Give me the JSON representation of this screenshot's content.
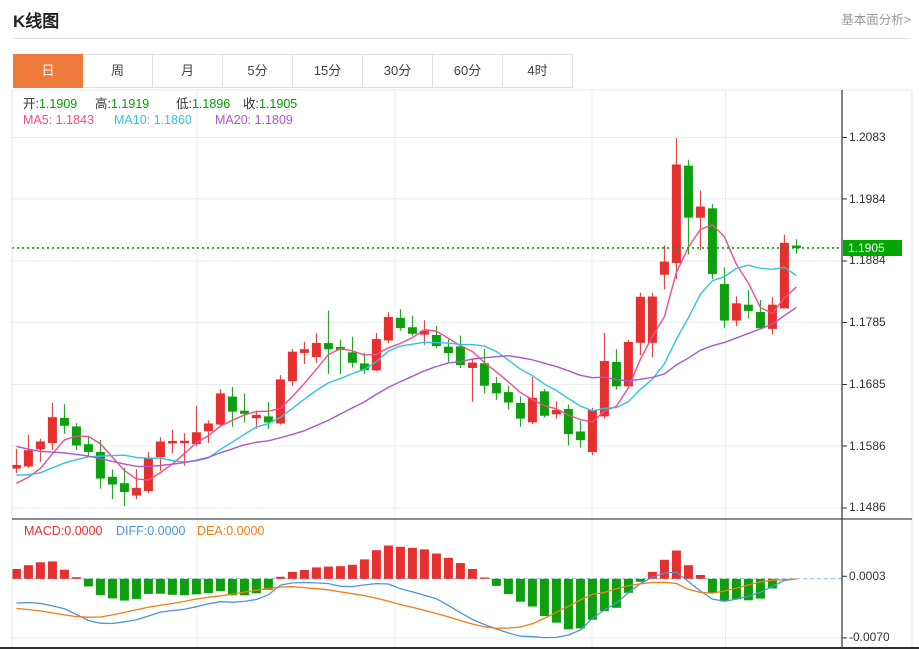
{
  "header": {
    "title": "K线图",
    "link_label": "基本面分析>"
  },
  "tabs": {
    "items": [
      {
        "label": "日",
        "active": true
      },
      {
        "label": "周",
        "active": false
      },
      {
        "label": "月",
        "active": false
      },
      {
        "label": "5分",
        "active": false
      },
      {
        "label": "15分",
        "active": false
      },
      {
        "label": "30分",
        "active": false
      },
      {
        "label": "60分",
        "active": false
      },
      {
        "label": "4时",
        "active": false
      }
    ]
  },
  "legend": {
    "open_label": "开:",
    "open": "1.1909",
    "high_label": "高:",
    "high": "1.1919",
    "low_label": "低:",
    "low": "1.1896",
    "close_label": "收:",
    "close": "1.1905",
    "ma5_label": "MA5:",
    "ma5": "1.1843",
    "ma10_label": "MA10:",
    "ma10": "1.1860",
    "ma20_label": "MA20:",
    "ma20": "1.1809"
  },
  "macd_legend": {
    "macd_label": "MACD:",
    "macd": "0.0000",
    "diff_label": "DIFF:",
    "diff": "0.0000",
    "dea_label": "DEA:",
    "dea": "0.0000"
  },
  "price_tag": {
    "value": "1.1905"
  },
  "axis": {
    "price_labels": [
      "1.2083",
      "1.1984",
      "1.1884",
      "1.1785",
      "1.1685",
      "1.1586",
      "1.1486"
    ],
    "macd_labels": [
      "0.0003",
      "-0.0070"
    ]
  },
  "colors": {
    "up": "#e62f2f",
    "down": "#0d9f0d",
    "accent": "#ee7a3c",
    "tag": "#00a700",
    "price_line": "#00a000",
    "ma5": "#ef4e8d",
    "ma10": "#30c4de",
    "ma20": "#ac57cc",
    "diff": "#4e94d8",
    "dea": "#ee7e18",
    "grid": "#e8eef5",
    "axis_line": "#333333",
    "zero_dash": "#86bce8",
    "legend_value": "#00a000"
  },
  "chart_data": {
    "type": "candlestick+macd",
    "title": "K线图",
    "candle_columns": [
      "open",
      "high",
      "low",
      "close"
    ],
    "candles": [
      [
        1.15495,
        1.15814,
        1.15424,
        1.15554
      ],
      [
        1.15529,
        1.16041,
        1.15506,
        1.15791
      ],
      [
        1.15807,
        1.15978,
        1.15601,
        1.15932
      ],
      [
        1.15907,
        1.16552,
        1.15795,
        1.16323
      ],
      [
        1.16313,
        1.16533,
        1.16056,
        1.16185
      ],
      [
        1.16175,
        1.16228,
        1.15798,
        1.15867
      ],
      [
        1.15888,
        1.16017,
        1.1569,
        1.15764
      ],
      [
        1.15764,
        1.15957,
        1.15174,
        1.15335
      ],
      [
        1.15363,
        1.1548,
        1.15005,
        1.15239
      ],
      [
        1.1526,
        1.15508,
        1.14892,
        1.15118
      ],
      [
        1.15061,
        1.15488,
        1.15002,
        1.15185
      ],
      [
        1.15134,
        1.15762,
        1.15102,
        1.15674
      ],
      [
        1.15679,
        1.15999,
        1.15459,
        1.15932
      ],
      [
        1.15907,
        1.16122,
        1.15746,
        1.15941
      ],
      [
        1.15904,
        1.16067,
        1.15542,
        1.15944
      ],
      [
        1.15891,
        1.16508,
        1.15857,
        1.16081
      ],
      [
        1.16099,
        1.16273,
        1.15909,
        1.16222
      ],
      [
        1.16204,
        1.16776,
        1.16186,
        1.16707
      ],
      [
        1.16655,
        1.16811,
        1.16168,
        1.16412
      ],
      [
        1.16429,
        1.16707,
        1.16238,
        1.16378
      ],
      [
        1.16307,
        1.16429,
        1.16135,
        1.1636
      ],
      [
        1.16336,
        1.16568,
        1.16135,
        1.16238
      ],
      [
        1.16222,
        1.17001,
        1.16204,
        1.16932
      ],
      [
        1.16903,
        1.17422,
        1.16823,
        1.17379
      ],
      [
        1.17359,
        1.17538,
        1.1718,
        1.17419
      ],
      [
        1.17293,
        1.17677,
        1.172,
        1.17519
      ],
      [
        1.17517,
        1.18038,
        1.17022,
        1.17419
      ],
      [
        1.17454,
        1.17573,
        1.17022,
        1.17403
      ],
      [
        1.17369,
        1.1762,
        1.17126,
        1.172
      ],
      [
        1.1719,
        1.17362,
        1.17022,
        1.1708
      ],
      [
        1.17077,
        1.1768,
        1.17066,
        1.17582
      ],
      [
        1.17561,
        1.18017,
        1.17517,
        1.17938
      ],
      [
        1.17925,
        1.18063,
        1.17717,
        1.1776
      ],
      [
        1.17773,
        1.17959,
        1.17638,
        1.17667
      ],
      [
        1.17654,
        1.17886,
        1.1749,
        1.17717
      ],
      [
        1.17648,
        1.17793,
        1.17435,
        1.17469
      ],
      [
        1.17459,
        1.17578,
        1.17211,
        1.17356
      ],
      [
        1.17464,
        1.17638,
        1.17117,
        1.17163
      ],
      [
        1.17116,
        1.17271,
        1.16574,
        1.17203
      ],
      [
        1.17192,
        1.17422,
        1.16707,
        1.16831
      ],
      [
        1.16873,
        1.16971,
        1.16602,
        1.16707
      ],
      [
        1.16728,
        1.16831,
        1.16449,
        1.1656
      ],
      [
        1.16554,
        1.16658,
        1.16172,
        1.16301
      ],
      [
        1.16241,
        1.16971,
        1.16214,
        1.16637
      ],
      [
        1.1674,
        1.16776,
        1.16318,
        1.16346
      ],
      [
        1.1637,
        1.16578,
        1.16301,
        1.16439
      ],
      [
        1.16455,
        1.16526,
        1.15867,
        1.16052
      ],
      [
        1.16093,
        1.16265,
        1.15832,
        1.15954
      ],
      [
        1.15762,
        1.16475,
        1.15711,
        1.16439
      ],
      [
        1.16336,
        1.1768,
        1.16301,
        1.17229
      ],
      [
        1.17213,
        1.17419,
        1.16769,
        1.16821
      ],
      [
        1.16821,
        1.17567,
        1.1681,
        1.17535
      ],
      [
        1.17522,
        1.18329,
        1.17319,
        1.18263
      ],
      [
        1.17522,
        1.18328,
        1.1729,
        1.18268
      ],
      [
        1.18619,
        1.1909,
        1.18382,
        1.1883
      ],
      [
        1.18808,
        1.20819,
        1.18548,
        1.20395
      ],
      [
        1.20376,
        1.20471,
        1.18948,
        1.19538
      ],
      [
        1.19538,
        1.19971,
        1.19019,
        1.19717
      ],
      [
        1.19689,
        1.19758,
        1.1855,
        1.18631
      ],
      [
        1.18469,
        1.18738,
        1.17757,
        1.1788
      ],
      [
        1.1788,
        1.1827,
        1.17789,
        1.18158
      ],
      [
        1.18136,
        1.18369,
        1.17912,
        1.18036
      ],
      [
        1.18018,
        1.18213,
        1.17735,
        1.17757
      ],
      [
        1.17746,
        1.18258,
        1.17656,
        1.18136
      ],
      [
        1.18076,
        1.19264,
        1.18076,
        1.19133
      ],
      [
        1.1909,
        1.1919,
        1.1896,
        1.1905
      ]
    ],
    "series": [
      {
        "name": "MA5",
        "values": [
          1.15258,
          1.15355,
          1.15497,
          1.15733,
          1.15957,
          1.1602,
          1.16014,
          1.15895,
          1.15678,
          1.15465,
          1.15328,
          1.1531,
          1.1543,
          1.1557,
          1.15735,
          1.15914,
          1.16024,
          1.16179,
          1.16273,
          1.1636,
          1.16416,
          1.16419,
          1.16464,
          1.16657,
          1.16866,
          1.17097,
          1.17334,
          1.17428,
          1.17392,
          1.17324,
          1.17337,
          1.17441,
          1.17512,
          1.17605,
          1.17733,
          1.1771,
          1.17594,
          1.17474,
          1.17382,
          1.17204,
          1.17052,
          1.16893,
          1.1672,
          1.16607,
          1.1651,
          1.16457,
          1.16355,
          1.16286,
          1.16246,
          1.16423,
          1.16499,
          1.16796,
          1.17257,
          1.17623,
          1.17943,
          1.18658,
          1.19059,
          1.1935,
          1.19422,
          1.19232,
          1.18785,
          1.18484,
          1.18092,
          1.17993,
          1.18244,
          1.18422
        ]
      },
      {
        "name": "MA10",
        "values": [
          1.15389,
          1.15396,
          1.15427,
          1.15508,
          1.15584,
          1.15639,
          1.15685,
          1.15696,
          1.15705,
          1.15711,
          1.15674,
          1.15662,
          1.15662,
          1.15624,
          1.156,
          1.15621,
          1.15667,
          1.15804,
          1.15922,
          1.16048,
          1.16165,
          1.16221,
          1.16321,
          1.16465,
          1.16613,
          1.16757,
          1.16876,
          1.16946,
          1.17025,
          1.17095,
          1.17217,
          1.17387,
          1.1747,
          1.17499,
          1.17529,
          1.17524,
          1.17517,
          1.17493,
          1.17494,
          1.17469,
          1.17381,
          1.17243,
          1.17097,
          1.16994,
          1.16857,
          1.16754,
          1.16624,
          1.16503,
          1.16427,
          1.16466,
          1.16478,
          1.16575,
          1.16771,
          1.16935,
          1.17183,
          1.17579,
          1.17927,
          1.18303,
          1.18523,
          1.18588,
          1.18721,
          1.18772,
          1.18721,
          1.18708,
          1.18738,
          1.18604
        ]
      },
      {
        "name": "MA20",
        "values": [
          1.15853,
          1.15807,
          1.15772,
          1.15761,
          1.15748,
          1.15723,
          1.15698,
          1.15655,
          1.15612,
          1.15568,
          1.15531,
          1.15529,
          1.15545,
          1.15566,
          1.15592,
          1.1563,
          1.15676,
          1.1575,
          1.15814,
          1.15879,
          1.15919,
          1.15942,
          1.15992,
          1.16045,
          1.16106,
          1.16189,
          1.16272,
          1.16375,
          1.16473,
          1.16571,
          1.16691,
          1.16804,
          1.16896,
          1.16982,
          1.17071,
          1.1714,
          1.17197,
          1.1722,
          1.17259,
          1.17282,
          1.17299,
          1.17315,
          1.17284,
          1.17247,
          1.17193,
          1.17139,
          1.17071,
          1.16998,
          1.1696,
          1.16968,
          1.16929,
          1.16909,
          1.16934,
          1.16965,
          1.1702,
          1.17166,
          1.17276,
          1.17403,
          1.17475,
          1.17527,
          1.176,
          1.17673,
          1.17746,
          1.17821,
          1.17961,
          1.18091
        ]
      }
    ],
    "current_price": 1.1905,
    "main_axis": {
      "ticks": [
        1.2083,
        1.1984,
        1.1884,
        1.1785,
        1.1685,
        1.1586,
        1.1486
      ],
      "range": [
        1.14683,
        1.21595
      ]
    },
    "macd": {
      "bars": [
        0.001161,
        0.001612,
        0.001955,
        0.002062,
        0.001078,
        0.00019,
        -0.000901,
        -0.00192,
        -0.002323,
        -0.002583,
        -0.002382,
        -0.001789,
        -0.001766,
        -0.001896,
        -0.001944,
        -0.001837,
        -0.001683,
        -0.001446,
        -0.001955,
        -0.001955,
        -0.001718,
        -0.001304,
        0.000237,
        0.000818,
        0.001043,
        0.001351,
        0.001446,
        0.001493,
        0.001659,
        0.002299,
        0.003389,
        0.003946,
        0.003792,
        0.003662,
        0.003484,
        0.002998,
        0.002489,
        0.001861,
        0.001161,
        0.000154,
        -0.000841,
        -0.001813,
        -0.002714,
        -0.003283,
        -0.00442,
        -0.005191,
        -0.005985,
        -0.005878,
        -0.004859,
        -0.003828,
        -0.003437,
        -0.001659,
        -0.000356,
        0.000818,
        0.002252,
        0.003354,
        0.001612,
        0.00045,
        -0.001706,
        -0.002666,
        -0.002429,
        -0.002548,
        -0.002346,
        -0.00115,
        0.0,
        0.0
      ],
      "diff": [
        -0.00288,
        -0.002809,
        -0.002915,
        -0.003212,
        -0.003543,
        -0.004231,
        -0.004942,
        -0.005262,
        -0.005297,
        -0.005096,
        -0.004871,
        -0.004408,
        -0.003946,
        -0.003757,
        -0.003614,
        -0.003306,
        -0.002963,
        -0.002714,
        -0.002773,
        -0.002678,
        -0.002453,
        -0.001896,
        -0.000747,
        -0.000486,
        -0.000438,
        -0.000486,
        -0.000569,
        -0.000889,
        -0.000924,
        -0.000723,
        -0.000569,
        -0.000616,
        -0.001185,
        -0.001552,
        -0.001955,
        -0.002358,
        -0.003164,
        -0.003994,
        -0.004823,
        -0.005416,
        -0.005949,
        -0.006423,
        -0.006802,
        -0.006862,
        -0.006968,
        -0.006944,
        -0.00666,
        -0.006068,
        -0.004693,
        -0.003697,
        -0.00288,
        -0.001647,
        -0.000557,
        0.000201,
        0.000675,
        0.000794,
        -0.000332,
        -0.001446,
        -0.002406,
        -0.002655,
        -0.002406,
        -0.002062,
        -0.001612,
        -0.000889,
        -0.000201,
        -1.2e-05
      ],
      "dea": [
        -0.003508,
        -0.00365,
        -0.003804,
        -0.004041,
        -0.004278,
        -0.00448,
        -0.004551,
        -0.004527,
        -0.004278,
        -0.003982,
        -0.003674,
        -0.003377,
        -0.00314,
        -0.002927,
        -0.002678,
        -0.002394,
        -0.002192,
        -0.002015,
        -0.001813,
        -0.001576,
        -0.001351,
        -0.00115,
        -0.000972,
        -0.000936,
        -0.001043,
        -0.001173,
        -0.001304,
        -0.001552,
        -0.001766,
        -0.001991,
        -0.002299,
        -0.002655,
        -0.003046,
        -0.003377,
        -0.003745,
        -0.004112,
        -0.004515,
        -0.004942,
        -0.005356,
        -0.005688,
        -0.005866,
        -0.005831,
        -0.005712,
        -0.005333,
        -0.004693,
        -0.003958,
        -0.003259,
        -0.002512,
        -0.001837,
        -0.001624,
        -0.001185,
        -0.000818,
        -0.000593,
        -0.000438,
        -0.000415,
        -0.000557,
        -0.001256,
        -0.001612,
        -0.001695,
        -0.001446,
        -0.001126,
        -0.000735,
        -0.000367,
        -0.000166,
        -9.5e-05,
        -2.4e-05
      ],
      "axis": {
        "ticks": [
          0.0003,
          -0.007
        ],
        "range": [
          -0.008201,
          0.007087
        ]
      }
    }
  }
}
